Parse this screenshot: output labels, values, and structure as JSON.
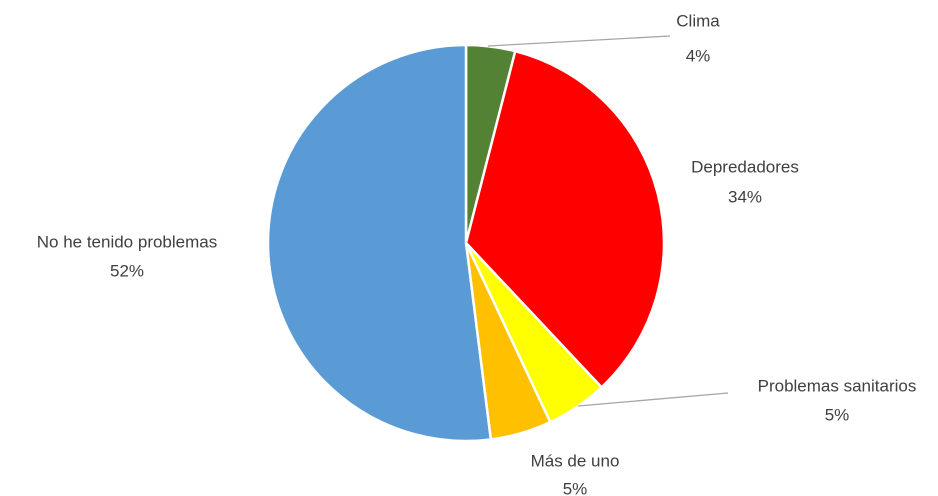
{
  "chart_data": {
    "type": "pie",
    "categories": [
      "Clima",
      "Depredadores",
      "Problemas sanitarios",
      "Más de uno",
      "No he tenido problemas"
    ],
    "values": [
      4,
      34,
      5,
      5,
      52
    ],
    "value_labels": [
      "4%",
      "34%",
      "5%",
      "5%",
      "52%"
    ],
    "colors": [
      "#548235",
      "#ff0000",
      "#ffff00",
      "#ffc000",
      "#5b9bd5"
    ]
  }
}
